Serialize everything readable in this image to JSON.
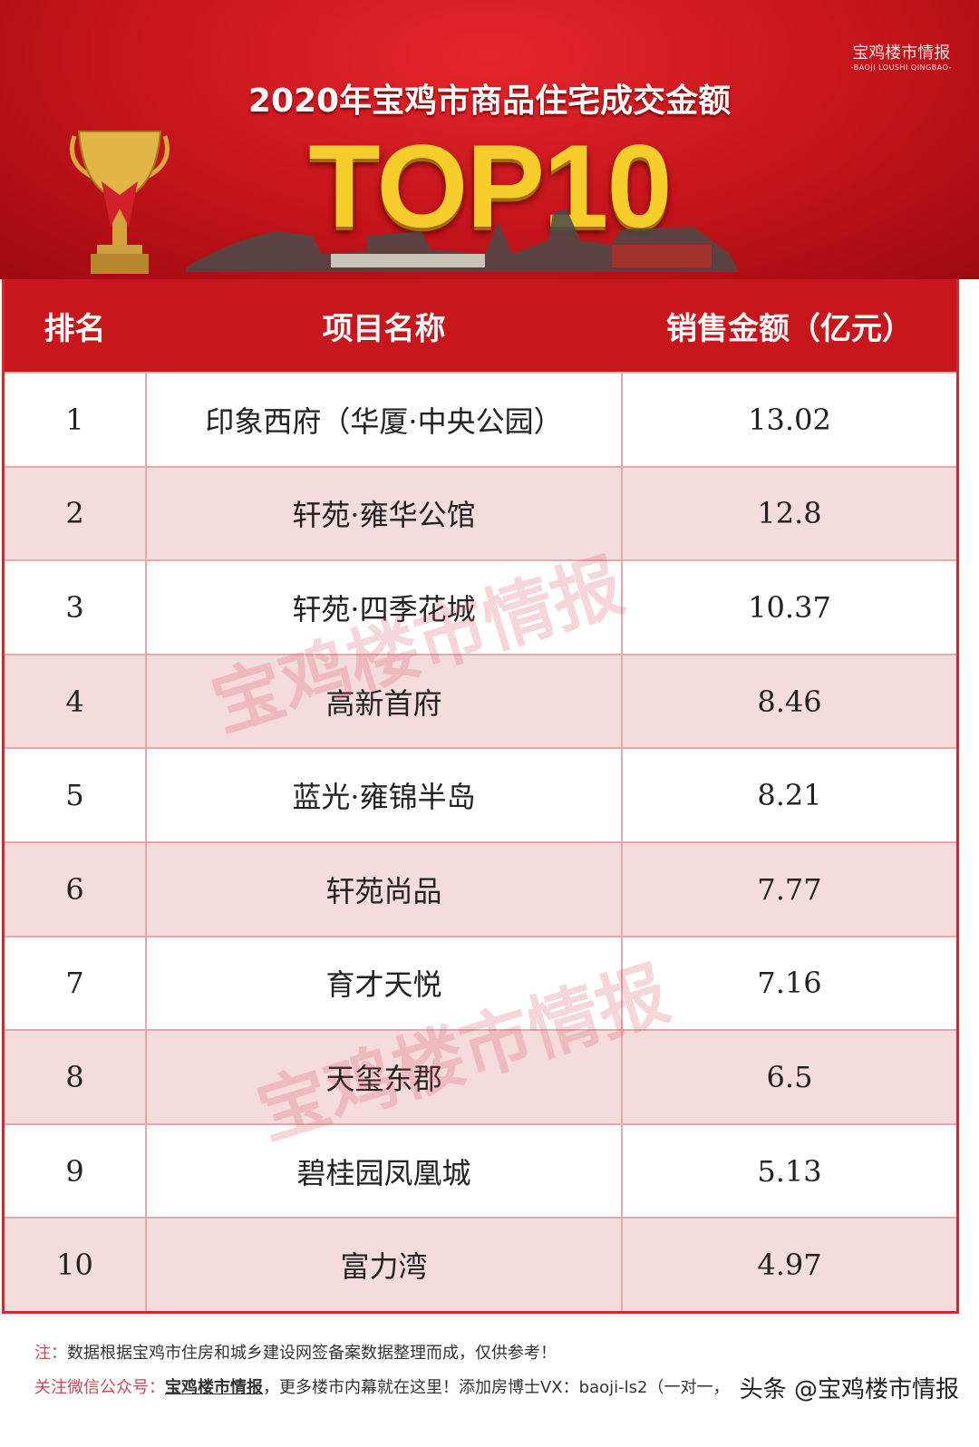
{
  "brand": {
    "cn": "宝鸡楼市情报",
    "en": "-BAOJI LOUSHI QINGBAO-"
  },
  "title": "2020年宝鸡市商品住宅成交金额",
  "subtitle": "TOP10",
  "table": {
    "headers": [
      "排名",
      "项目名称",
      "销售金额（亿元）"
    ],
    "rows": [
      {
        "rank": "1",
        "name": "印象西府（华厦·中央公园）",
        "amount": "13.02"
      },
      {
        "rank": "2",
        "name": "轩苑·雍华公馆",
        "amount": "12.8"
      },
      {
        "rank": "3",
        "name": "轩苑·四季花城",
        "amount": "10.37"
      },
      {
        "rank": "4",
        "name": "高新首府",
        "amount": "8.46"
      },
      {
        "rank": "5",
        "name": "蓝光·雍锦半岛",
        "amount": "8.21"
      },
      {
        "rank": "6",
        "name": "轩苑尚品",
        "amount": "7.77"
      },
      {
        "rank": "7",
        "name": "育才天悦",
        "amount": "7.16"
      },
      {
        "rank": "8",
        "name": "天玺东郡",
        "amount": "6.5"
      },
      {
        "rank": "9",
        "name": "碧桂园凤凰城",
        "amount": "5.13"
      },
      {
        "rank": "10",
        "name": "富力湾",
        "amount": "4.97"
      }
    ]
  },
  "watermark": "宝鸡楼市情报",
  "footer": {
    "note_label": "注：",
    "note": "数据根据宝鸡市住房和城乡建设网签备案数据整理而成，仅供参考！",
    "follow_label": "关注微信公众号：",
    "account": "宝鸡楼市情报",
    "follow_text": "，更多楼市内幕就在这里！添加房博士VX：baoji-ls2（一对一，"
  },
  "toutiao_mark": "头条 @宝鸡楼市情报",
  "colors": {
    "header_red": "#c8161d",
    "row_alt": "#f5dcdc",
    "gold": "#f7cd2c"
  }
}
